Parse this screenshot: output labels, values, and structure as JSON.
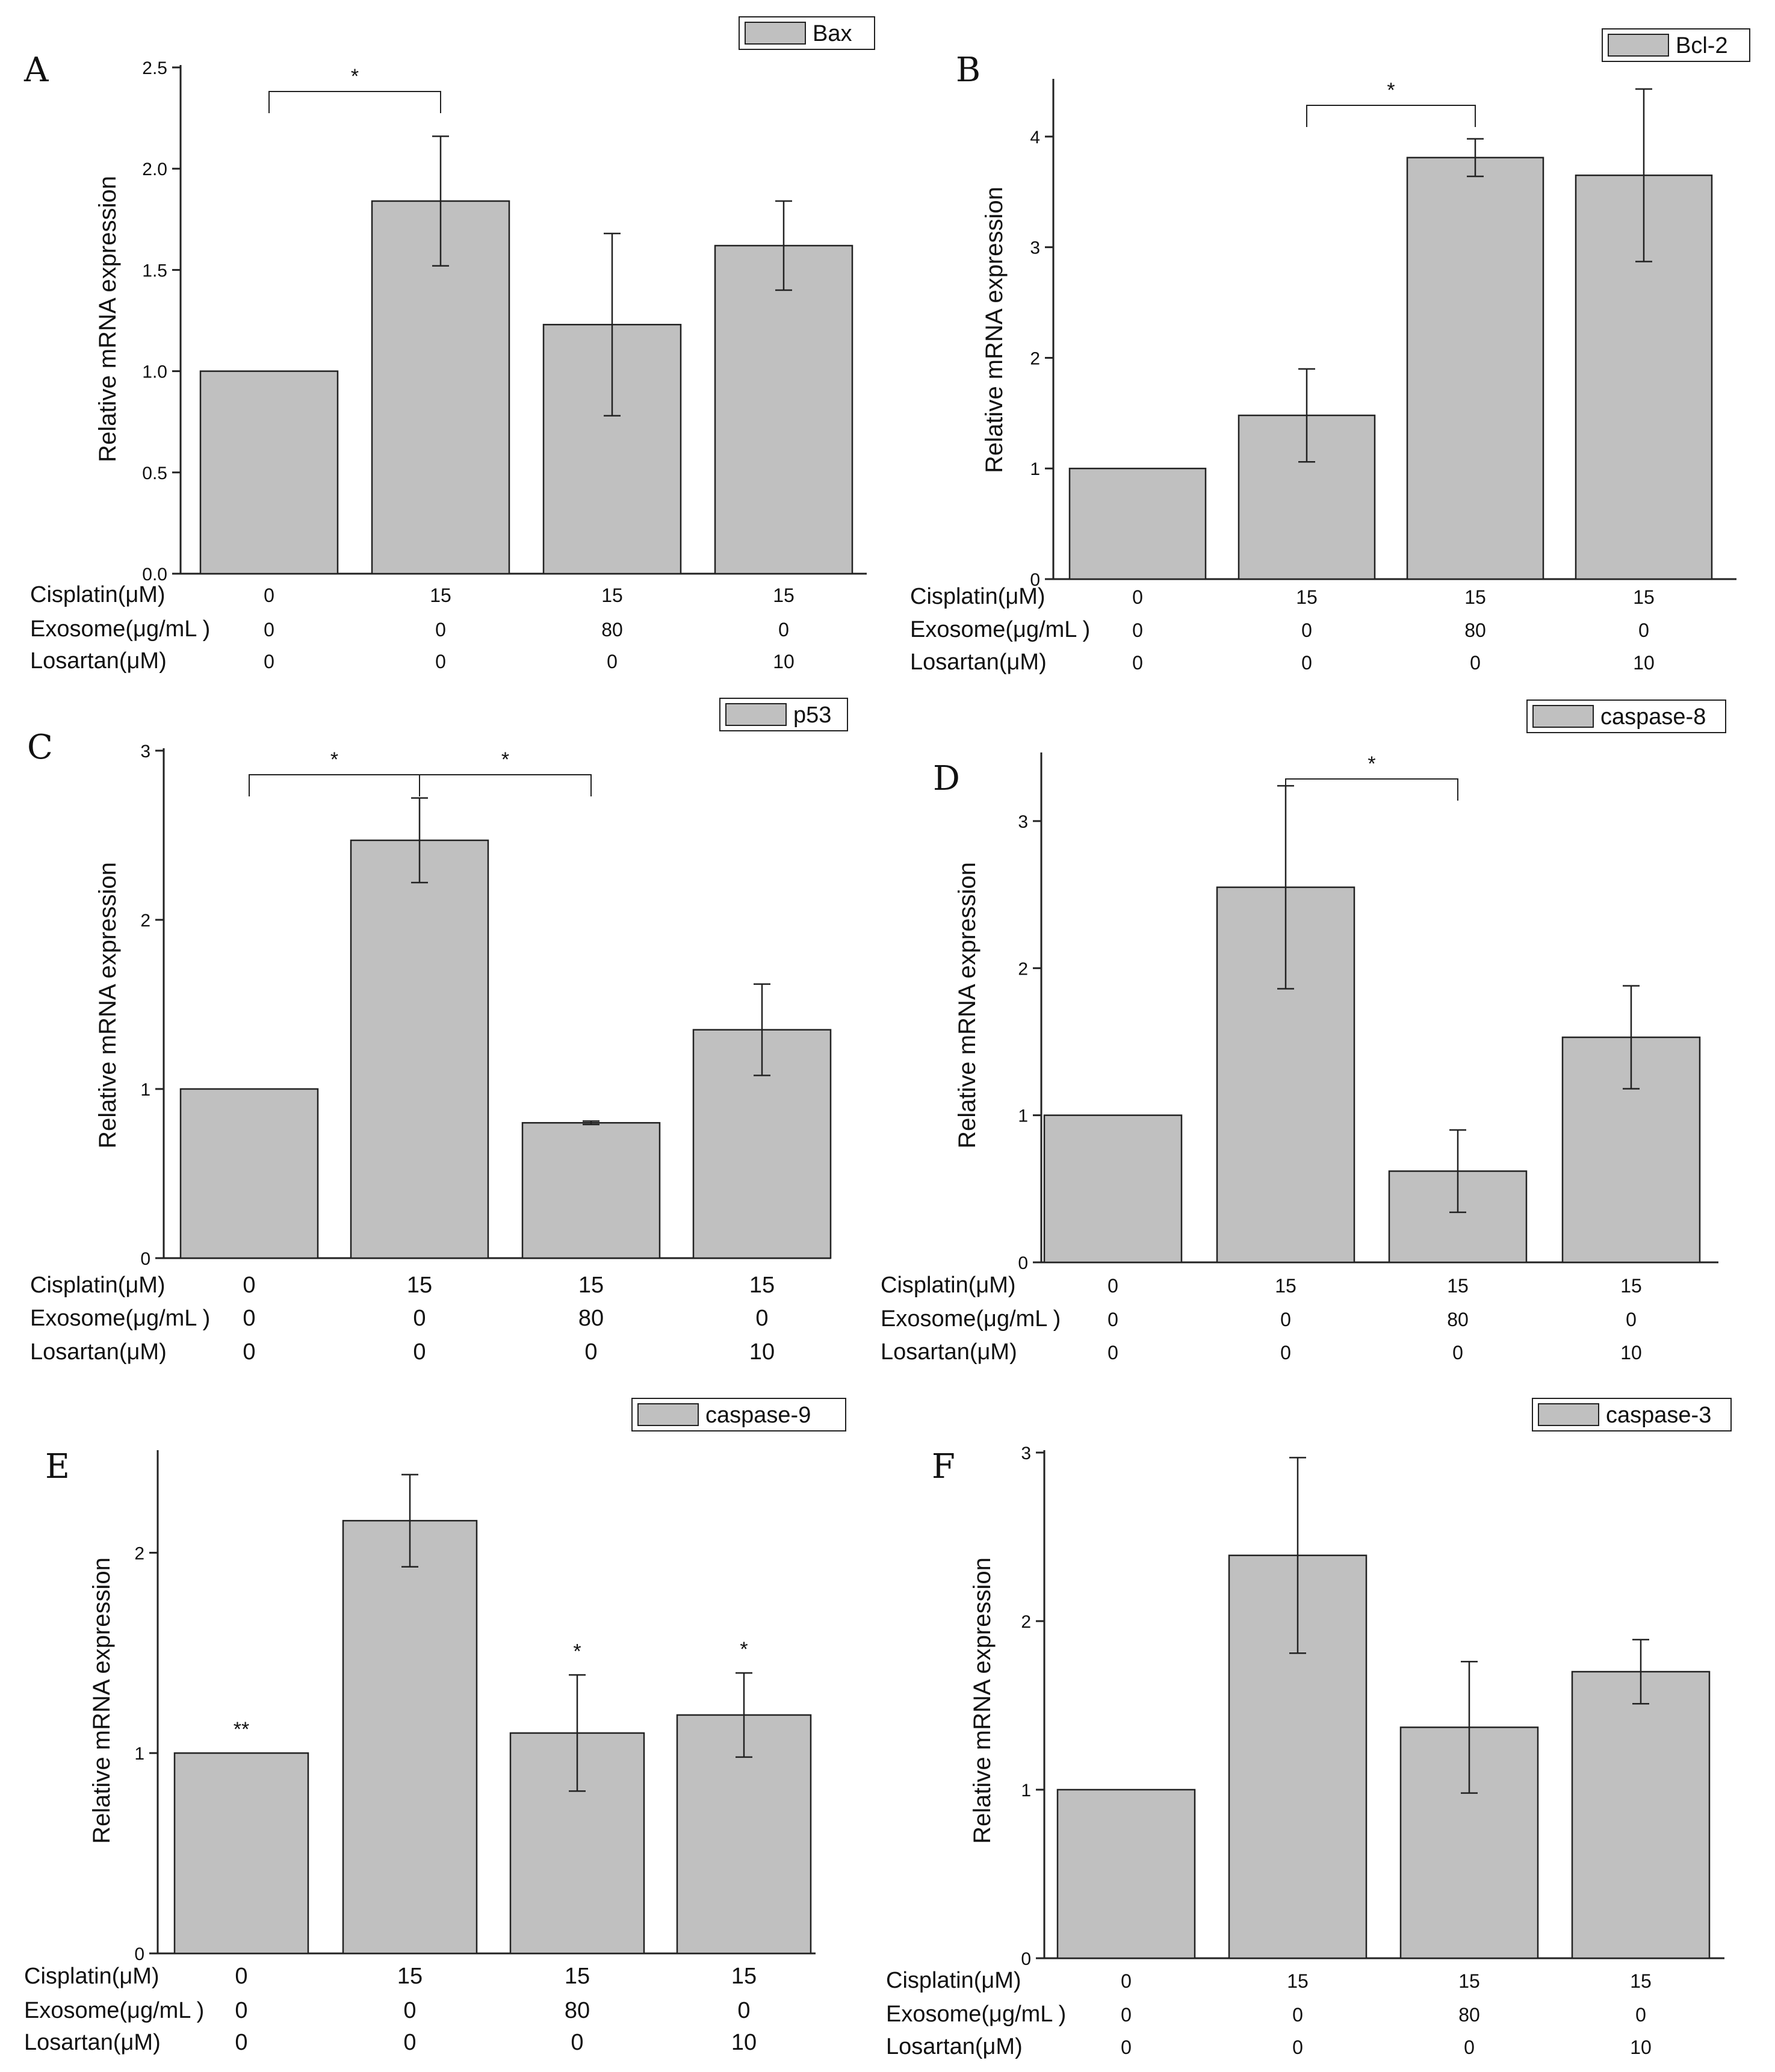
{
  "figure": {
    "row_labels": [
      "Cisplatin(μM)",
      "Exosome(μg/mL )",
      "Losartan(μM)"
    ]
  },
  "chart_data": [
    {
      "panel": "A",
      "type": "bar",
      "legend": "Bax",
      "ylabel": "Relative mRNA expression",
      "ylim": [
        0,
        2.5
      ],
      "yticks": [
        "0.0",
        "0.5",
        "1.0",
        "1.5",
        "2.0",
        "2.5"
      ],
      "values": [
        1.0,
        1.84,
        1.23,
        1.62
      ],
      "errors": [
        0,
        0.32,
        0.45,
        0.22
      ],
      "cisplatin": [
        "0",
        "15",
        "15",
        "15"
      ],
      "exosome": [
        "0",
        "0",
        "80",
        "0"
      ],
      "losartan": [
        "0",
        "0",
        "0",
        "10"
      ],
      "brackets": [
        {
          "from": 0,
          "to": 1,
          "label": "*"
        }
      ],
      "stars": [],
      "colors": {
        "bar": "#c0c0c0",
        "edge": "#222222"
      }
    },
    {
      "panel": "B",
      "type": "bar",
      "legend": "Bcl-2",
      "ylabel": "Relative mRNA expression",
      "ylim": [
        0,
        4.5
      ],
      "yticks": [
        "0",
        "1",
        "2",
        "3",
        "4"
      ],
      "values": [
        1.0,
        1.48,
        3.81,
        3.65
      ],
      "errors": [
        0,
        0.42,
        0.17,
        0.78
      ],
      "cisplatin": [
        "0",
        "15",
        "15",
        "15"
      ],
      "exosome": [
        "0",
        "0",
        "80",
        "0"
      ],
      "losartan": [
        "0",
        "0",
        "0",
        "10"
      ],
      "brackets": [
        {
          "from": 1,
          "to": 2,
          "label": "*"
        }
      ],
      "stars": [],
      "colors": {
        "bar": "#c0c0c0",
        "edge": "#222222"
      }
    },
    {
      "panel": "C",
      "type": "bar",
      "legend": "p53",
      "ylabel": "Relative mRNA expression",
      "ylim": [
        0,
        3
      ],
      "yticks": [
        "0",
        "1",
        "2",
        "3"
      ],
      "values": [
        1.0,
        2.47,
        0.8,
        1.35
      ],
      "errors": [
        0,
        0.25,
        0.01,
        0.27
      ],
      "cisplatin": [
        "0",
        "15",
        "15",
        "15"
      ],
      "exosome": [
        "0",
        "0",
        "80",
        "0"
      ],
      "losartan": [
        "0",
        "0",
        "0",
        "10"
      ],
      "brackets": [
        {
          "from": 0,
          "to": 1,
          "label": "*"
        },
        {
          "from": 1,
          "to": 2,
          "label": "*"
        }
      ],
      "stars": [],
      "colors": {
        "bar": "#c0c0c0",
        "edge": "#222222"
      }
    },
    {
      "panel": "D",
      "type": "bar",
      "legend": "caspase-8",
      "ylabel": "Relative mRNA expression",
      "ylim": [
        0,
        3.45
      ],
      "yticks": [
        "0",
        "1",
        "2",
        "3"
      ],
      "values": [
        1.0,
        2.55,
        0.62,
        1.53
      ],
      "errors": [
        0,
        0.69,
        0.28,
        0.35
      ],
      "cisplatin": [
        "0",
        "15",
        "15",
        "15"
      ],
      "exosome": [
        "0",
        "0",
        "80",
        "0"
      ],
      "losartan": [
        "0",
        "0",
        "0",
        "10"
      ],
      "brackets": [
        {
          "from": 1,
          "to": 2,
          "label": "*"
        }
      ],
      "stars": [],
      "colors": {
        "bar": "#c0c0c0",
        "edge": "#222222"
      }
    },
    {
      "panel": "E",
      "type": "bar",
      "legend": "caspase-9",
      "ylabel": "Relative mRNA expression",
      "ylim": [
        0,
        2.5
      ],
      "yticks": [
        "0",
        "1",
        "2"
      ],
      "values": [
        1.0,
        2.16,
        1.1,
        1.19
      ],
      "errors": [
        0,
        0.23,
        0.29,
        0.21
      ],
      "cisplatin": [
        "0",
        "15",
        "15",
        "15"
      ],
      "exosome": [
        "0",
        "0",
        "80",
        "0"
      ],
      "losartan": [
        "0",
        "0",
        "0",
        "10"
      ],
      "brackets": [],
      "stars": [
        "**",
        "",
        "*",
        "*"
      ],
      "colors": {
        "bar": "#c0c0c0",
        "edge": "#222222"
      }
    },
    {
      "panel": "F",
      "type": "bar",
      "legend": "caspase-3",
      "ylabel": "Relative mRNA expression",
      "ylim": [
        0,
        3
      ],
      "yticks": [
        "0",
        "1",
        "2",
        "3"
      ],
      "values": [
        1.0,
        2.39,
        1.37,
        1.7
      ],
      "errors": [
        0,
        0.58,
        0.39,
        0.19
      ],
      "cisplatin": [
        "0",
        "15",
        "15",
        "15"
      ],
      "exosome": [
        "0",
        "0",
        "80",
        "0"
      ],
      "losartan": [
        "0",
        "0",
        "0",
        "10"
      ],
      "brackets": [],
      "stars": [],
      "colors": {
        "bar": "#c0c0c0",
        "edge": "#222222"
      }
    }
  ]
}
